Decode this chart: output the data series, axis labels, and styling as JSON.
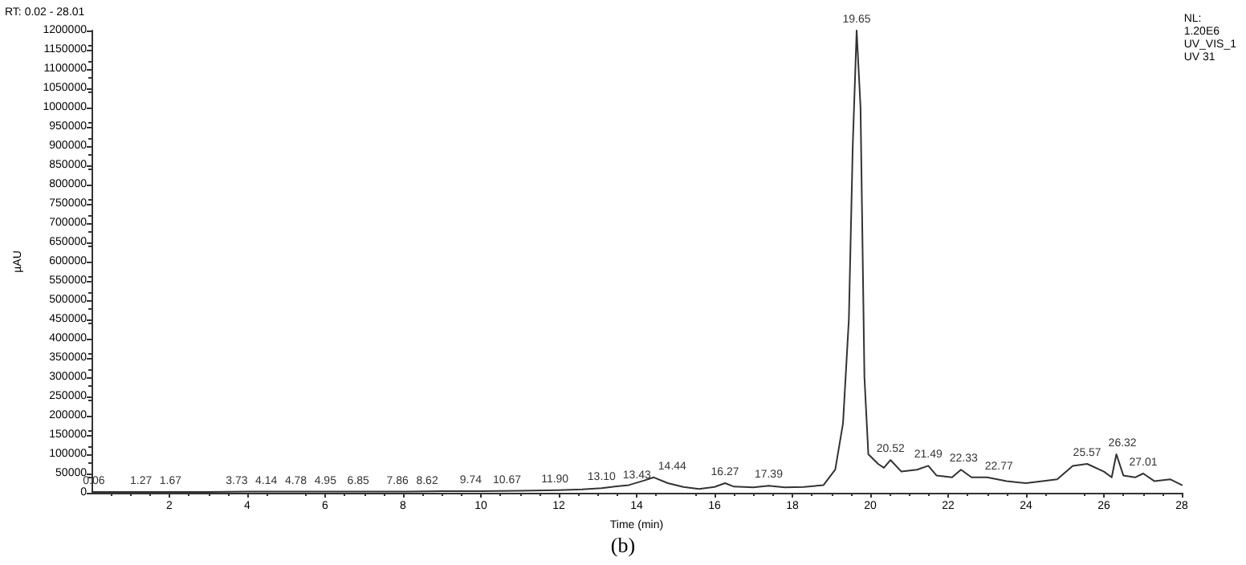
{
  "chart_data": {
    "type": "line",
    "xlabel": "Time (min)",
    "ylabel": "µAU",
    "xlim": [
      0,
      28
    ],
    "xticks": [
      2,
      4,
      6,
      8,
      10,
      12,
      14,
      16,
      18,
      20,
      22,
      24,
      26,
      28
    ],
    "ylim": [
      0,
      1200000
    ],
    "yticks": [
      0,
      50000,
      100000,
      150000,
      200000,
      250000,
      300000,
      350000,
      400000,
      450000,
      500000,
      550000,
      600000,
      650000,
      700000,
      750000,
      800000,
      850000,
      900000,
      950000,
      1000000,
      1050000,
      1100000,
      1150000,
      1200000
    ],
    "grid": false,
    "marker": "none",
    "line_style": "solid",
    "series": [
      {
        "color": "#333333",
        "x": [
          0.02,
          1,
          2,
          3,
          4,
          5,
          6,
          7,
          8,
          9,
          10,
          11,
          12,
          12.6,
          13.1,
          13.43,
          13.8,
          14.2,
          14.44,
          14.8,
          15.2,
          15.6,
          16,
          16.27,
          16.5,
          17,
          17.39,
          17.8,
          18.3,
          18.8,
          19.1,
          19.3,
          19.45,
          19.55,
          19.65,
          19.75,
          19.85,
          19.95,
          20.2,
          20.35,
          20.52,
          20.8,
          21.2,
          21.49,
          21.7,
          22.1,
          22.33,
          22.6,
          23,
          23.5,
          24,
          24.8,
          25.2,
          25.57,
          26,
          26.2,
          26.32,
          26.5,
          26.8,
          27.01,
          27.3,
          27.7,
          28
        ],
        "values": [
          2000,
          2000,
          2000,
          2000,
          3000,
          3000,
          3000,
          3000,
          3000,
          4000,
          4000,
          5000,
          7000,
          9000,
          12000,
          16000,
          20000,
          32000,
          40000,
          25000,
          15000,
          10000,
          15000,
          25000,
          16000,
          14000,
          18000,
          14000,
          15000,
          20000,
          60000,
          180000,
          450000,
          900000,
          1200000,
          1000000,
          300000,
          100000,
          75000,
          65000,
          85000,
          55000,
          60000,
          70000,
          45000,
          40000,
          60000,
          40000,
          40000,
          30000,
          25000,
          35000,
          70000,
          75000,
          55000,
          40000,
          100000,
          45000,
          40000,
          50000,
          30000,
          35000,
          20000
        ]
      }
    ],
    "annotations": [
      "RT: 0.02 - 28.01",
      "NL:\n1.20E6\nUV_VIS_1\nUV 31",
      "(b)",
      {
        "text": "0.06",
        "x": 0.06,
        "y": 2000
      },
      {
        "text": "1.27",
        "x": 1.27,
        "y": 2000
      },
      {
        "text": "1.67",
        "x": 1.67,
        "y": 2000
      },
      {
        "text": "3.73",
        "x": 3.73,
        "y": 2000
      },
      {
        "text": "4.14",
        "x": 4.14,
        "y": 3000
      },
      {
        "text": "4.78",
        "x": 4.78,
        "y": 3000
      },
      {
        "text": "4.95",
        "x": 4.95,
        "y": 3000
      },
      {
        "text": "6.85",
        "x": 6.85,
        "y": 3000
      },
      {
        "text": "7.86",
        "x": 7.86,
        "y": 3000
      },
      {
        "text": "8.62",
        "x": 8.62,
        "y": 3000
      },
      {
        "text": "9.74",
        "x": 9.74,
        "y": 4000
      },
      {
        "text": "10.67",
        "x": 10.67,
        "y": 4000
      },
      {
        "text": "11.90",
        "x": 11.9,
        "y": 6000
      },
      {
        "text": "13.10",
        "x": 13.1,
        "y": 12000
      },
      {
        "text": "13.43",
        "x": 13.43,
        "y": 16000
      },
      {
        "text": "14.44",
        "x": 14.44,
        "y": 40000
      },
      {
        "text": "16.27",
        "x": 16.27,
        "y": 25000
      },
      {
        "text": "17.39",
        "x": 17.39,
        "y": 18000
      },
      {
        "text": "19.65",
        "x": 19.65,
        "y": 1200000
      },
      {
        "text": "20.52",
        "x": 20.52,
        "y": 85000
      },
      {
        "text": "21.49",
        "x": 21.49,
        "y": 70000
      },
      {
        "text": "22.33",
        "x": 22.33,
        "y": 60000
      },
      {
        "text": "22.77",
        "x": 22.77,
        "y": 40000
      },
      {
        "text": "25.57",
        "x": 25.57,
        "y": 75000
      },
      {
        "text": "26.32",
        "x": 26.32,
        "y": 100000
      },
      {
        "text": "27.01",
        "x": 27.01,
        "y": 50000
      }
    ]
  }
}
